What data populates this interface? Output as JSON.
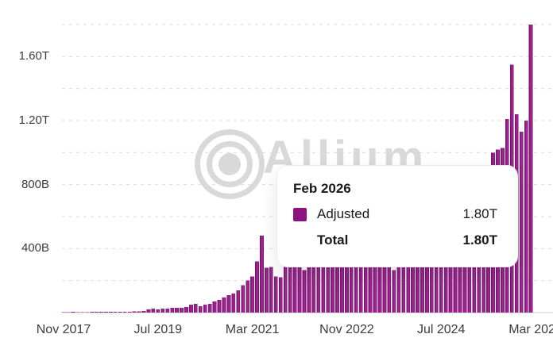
{
  "watermark": {
    "text": "Allium"
  },
  "colors": {
    "bar": "#8E1680",
    "bar_edge": "#7E0F72",
    "bar_highlight": "#A5329A",
    "grid": "#DBDBDB",
    "axis_line": "#D5D5D5",
    "label": "#3C3C3C",
    "watermark": "#D9D9D9",
    "tooltip_border": "#EDEDED",
    "swatch": "#8D1480"
  },
  "tooltip": {
    "title": "Feb 2026",
    "series": [
      {
        "label": "Adjusted",
        "value": "1.80T",
        "swatch_color": "#8D1480"
      }
    ],
    "total_label": "Total",
    "total_value": "1.80T"
  },
  "chart_data": {
    "type": "bar",
    "title": "",
    "series_name": "Adjusted",
    "value_unit": "B (billions, displayed as B/T)",
    "ylim": [
      0,
      1860
    ],
    "gridline_step": 200,
    "grid": "dashed horizontal",
    "legend_position": "none (tooltip shown)",
    "y_ticks": [
      {
        "value": 400,
        "label": "400B"
      },
      {
        "value": 800,
        "label": "800B"
      },
      {
        "value": 1200,
        "label": "1.20T"
      },
      {
        "value": 1600,
        "label": "1.60T"
      }
    ],
    "x_ticks": [
      {
        "index": 0,
        "label": "Nov 2017"
      },
      {
        "index": 20,
        "label": "Jul 2019"
      },
      {
        "index": 40,
        "label": "Mar 2021"
      },
      {
        "index": 60,
        "label": "Nov 2022"
      },
      {
        "index": 80,
        "label": "Jul 2024"
      },
      {
        "index": 100,
        "label": "Mar 2026"
      }
    ],
    "categories": [
      "2017-11",
      "2017-12",
      "2018-01",
      "2018-02",
      "2018-03",
      "2018-04",
      "2018-05",
      "2018-06",
      "2018-07",
      "2018-08",
      "2018-09",
      "2018-10",
      "2018-11",
      "2018-12",
      "2019-01",
      "2019-02",
      "2019-03",
      "2019-04",
      "2019-05",
      "2019-06",
      "2019-07",
      "2019-08",
      "2019-09",
      "2019-10",
      "2019-11",
      "2019-12",
      "2020-01",
      "2020-02",
      "2020-03",
      "2020-04",
      "2020-05",
      "2020-06",
      "2020-07",
      "2020-08",
      "2020-09",
      "2020-10",
      "2020-11",
      "2020-12",
      "2021-01",
      "2021-02",
      "2021-03",
      "2021-04",
      "2021-05",
      "2021-06",
      "2021-07",
      "2021-08",
      "2021-09",
      "2021-10",
      "2021-11",
      "2021-12",
      "2022-01",
      "2022-02",
      "2022-03",
      "2022-04",
      "2022-05",
      "2022-06",
      "2022-07",
      "2022-08",
      "2022-09",
      "2022-10",
      "2022-11",
      "2022-12",
      "2023-01",
      "2023-02",
      "2023-03",
      "2023-04",
      "2023-05",
      "2023-06",
      "2023-07",
      "2023-08",
      "2023-09",
      "2023-10",
      "2023-11",
      "2023-12",
      "2024-01",
      "2024-02",
      "2024-03",
      "2024-04",
      "2024-05",
      "2024-06",
      "2024-07",
      "2024-08",
      "2024-09",
      "2024-10",
      "2024-11",
      "2024-12",
      "2025-01",
      "2025-02",
      "2025-03",
      "2025-04",
      "2025-05",
      "2025-06",
      "2025-07",
      "2025-08",
      "2025-09",
      "2025-10",
      "2025-11",
      "2025-12",
      "2026-01",
      "2026-02"
    ],
    "values": [
      2,
      3,
      4,
      3,
      3,
      3,
      4,
      4,
      4,
      5,
      5,
      5,
      6,
      6,
      6,
      7,
      8,
      10,
      20,
      25,
      20,
      25,
      25,
      30,
      30,
      30,
      35,
      50,
      55,
      40,
      50,
      55,
      70,
      80,
      95,
      110,
      120,
      140,
      170,
      200,
      225,
      320,
      480,
      280,
      285,
      225,
      220,
      290,
      330,
      340,
      330,
      265,
      360,
      400,
      520,
      480,
      420,
      400,
      430,
      440,
      520,
      400,
      390,
      420,
      500,
      380,
      350,
      330,
      320,
      300,
      265,
      320,
      360,
      400,
      420,
      480,
      600,
      580,
      560,
      550,
      560,
      540,
      530,
      600,
      700,
      780,
      750,
      700,
      720,
      760,
      820,
      1000,
      1020,
      1030,
      1210,
      1550,
      1240,
      1130,
      1200,
      1800
    ],
    "hovered_category": "2026-02",
    "hovered_value_label": "1.80T"
  }
}
